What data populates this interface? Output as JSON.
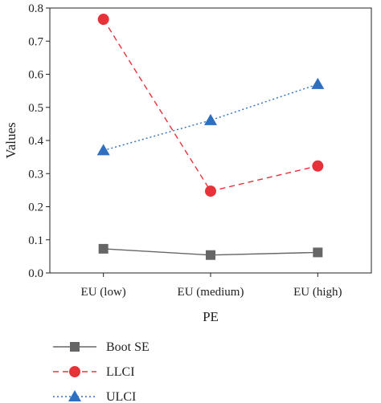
{
  "chart_data": {
    "type": "line",
    "title": "",
    "xlabel": "PE",
    "ylabel": "Values",
    "categories": [
      "EU (low)",
      "EU (medium)",
      "EU (high)"
    ],
    "ylim": [
      0,
      0.8
    ],
    "yticks": [
      "0.0",
      "0.1",
      "0.2",
      "0.3",
      "0.4",
      "0.5",
      "0.6",
      "0.7",
      "0.8"
    ],
    "grid": false,
    "legend_position": "bottom-left",
    "series": [
      {
        "name": "Boot SE",
        "values": [
          0.073,
          0.054,
          0.062
        ],
        "color": "#666666",
        "marker": "square",
        "line": "solid"
      },
      {
        "name": "LLCI",
        "values": [
          0.766,
          0.247,
          0.323
        ],
        "color": "#e8323a",
        "marker": "circle",
        "line": "dashed"
      },
      {
        "name": "ULCI",
        "values": [
          0.37,
          0.461,
          0.57
        ],
        "color": "#2f6fbf",
        "marker": "triangle",
        "line": "dotted"
      }
    ]
  }
}
